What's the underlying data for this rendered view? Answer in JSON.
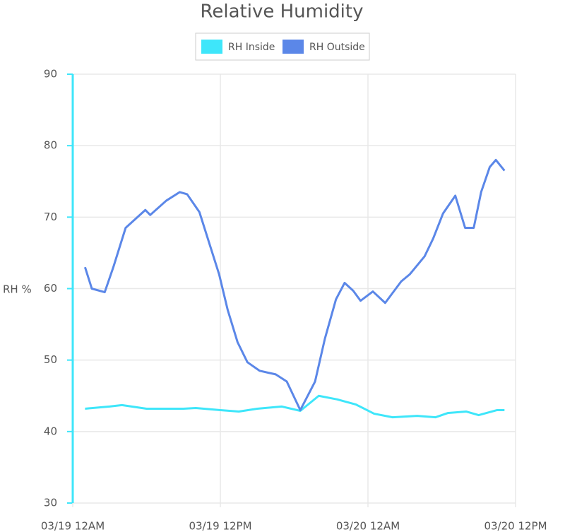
{
  "chart_data": {
    "type": "line",
    "title": "Relative Humidity",
    "y_label": "RH %",
    "xlim": [
      0,
      36
    ],
    "xticks": [
      {
        "value": 0,
        "label": "03/19 12AM"
      },
      {
        "value": 12,
        "label": "03/19 12PM"
      },
      {
        "value": 24,
        "label": "03/20 12AM"
      },
      {
        "value": 36,
        "label": "03/20 12PM"
      }
    ],
    "ylim": [
      30,
      90
    ],
    "yticks": [
      30,
      40,
      50,
      60,
      70,
      80,
      90
    ],
    "grid": true,
    "legend": "top",
    "series": [
      {
        "name": "RH Inside",
        "color": "#3ee6fa",
        "x": [
          1.0,
          3,
          4,
          6,
          9,
          10,
          12,
          13.5,
          15,
          17,
          18.5,
          20,
          21.5,
          23,
          24.5,
          26,
          28,
          29.5,
          30.5,
          32,
          33,
          34.5,
          35.1
        ],
        "values": [
          43.2,
          43.5,
          43.7,
          43.2,
          43.2,
          43.3,
          43,
          42.8,
          43.2,
          43.5,
          42.9,
          45,
          44.5,
          43.8,
          42.5,
          42,
          42.2,
          42,
          42.6,
          42.8,
          42.3,
          43,
          43
        ]
      },
      {
        "name": "RH Outside",
        "color": "#5b87e8",
        "x": [
          1.0,
          1.55,
          2.6,
          3.3,
          4.3,
          5.9,
          6.3,
          7.6,
          8.7,
          9.3,
          10.3,
          11.9,
          12.6,
          13.4,
          14.2,
          15.2,
          16.5,
          17.4,
          18.5,
          19.7,
          20.5,
          21.4,
          22.1,
          22.8,
          23.4,
          24.4,
          25.4,
          26.7,
          27.4,
          28.6,
          29.3,
          30.1,
          31.1,
          31.9,
          32.6,
          33.2,
          33.9,
          34.4,
          35.1
        ],
        "values": [
          63,
          60,
          59.5,
          63,
          68.5,
          71,
          70.3,
          72.3,
          73.5,
          73.2,
          70.7,
          62,
          57,
          52.5,
          49.7,
          48.5,
          48,
          47,
          43,
          47,
          53,
          58.5,
          60.8,
          59.7,
          58.3,
          59.6,
          58,
          61,
          62,
          64.5,
          67,
          70.5,
          73,
          68.5,
          68.5,
          73.5,
          77,
          78,
          76.5
        ]
      }
    ]
  }
}
